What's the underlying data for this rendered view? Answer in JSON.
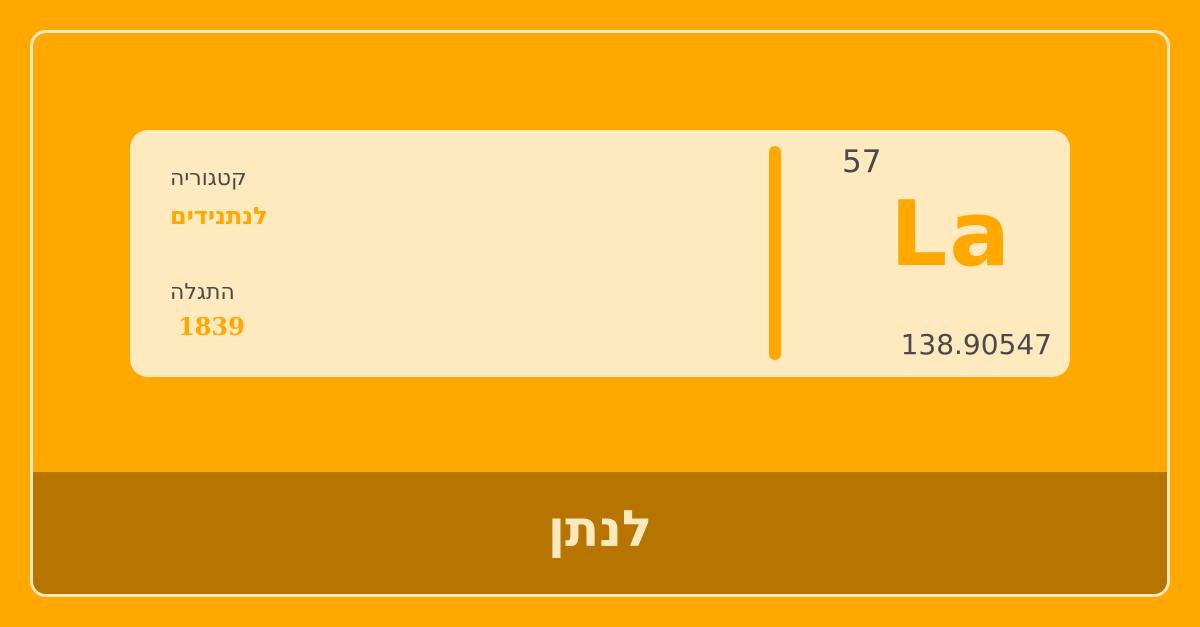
{
  "element": {
    "atomic_number": "57",
    "symbol": "La",
    "atomic_weight": "138.90547",
    "category_label": "קטגוריה",
    "category_value": "לנתנידים",
    "discovery_label": "התגלה",
    "discovery_year": "1839",
    "name": "לנתן"
  },
  "colors": {
    "background": "#ffa800",
    "card": "#ffe9bf",
    "footer": "#b57500",
    "text": "#4a4a4a",
    "frame_border": "#fde9bd"
  }
}
